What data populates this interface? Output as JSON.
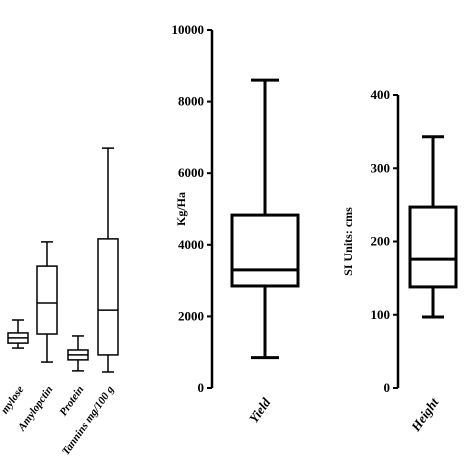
{
  "chart_data": [
    {
      "type": "box",
      "categories": [
        "mylose",
        "Amylopctin",
        "Protein",
        "Tannins mg/100 g"
      ],
      "min": [
        9.8,
        4.7,
        1.5,
        1.1
      ],
      "q1": [
        11.6,
        14.9,
        5.5,
        7.3
      ],
      "median": [
        13.5,
        26.2,
        7.3,
        23.6
      ],
      "q3": [
        15.3,
        39.6,
        9.1,
        49.5
      ],
      "max": [
        20,
        48.4,
        14.2,
        82.5
      ],
      "ylim": [
        0,
        100
      ]
    },
    {
      "type": "box",
      "categories": [
        "Yield"
      ],
      "y_label": "Kg/Ha",
      "min": [
        850
      ],
      "q1": [
        2850
      ],
      "median": [
        3300
      ],
      "q3": [
        4830
      ],
      "max": [
        8600
      ],
      "ylim": [
        0,
        10000
      ],
      "yticks": [
        0,
        2000,
        4000,
        6000,
        8000,
        10000
      ]
    },
    {
      "type": "box",
      "categories": [
        "Height"
      ],
      "y_label": "SI Units: cms",
      "min": [
        97
      ],
      "q1": [
        138
      ],
      "median": [
        176
      ],
      "q3": [
        247
      ],
      "max": [
        343
      ],
      "ylim": [
        0,
        400
      ],
      "yticks": [
        0,
        100,
        200,
        300,
        400
      ]
    }
  ]
}
